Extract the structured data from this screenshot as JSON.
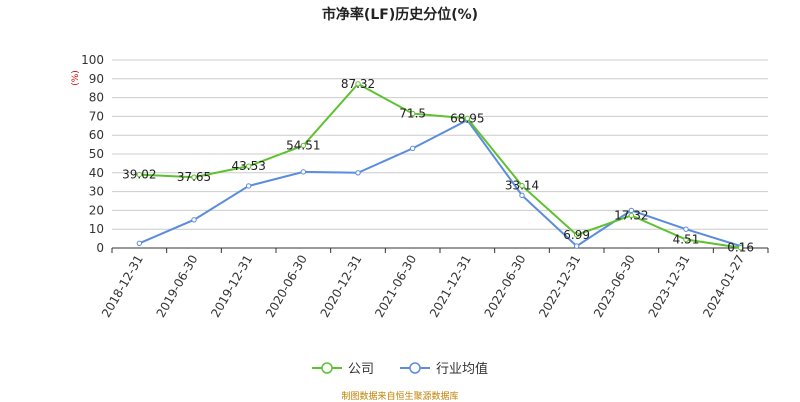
{
  "title": "市净率(LF)历史分位(%)",
  "source": "制图数据来自恒生聚源数据库",
  "colors": {
    "company": "#5ec12f",
    "industry": "#5b8ce0",
    "grid": "#cccccc",
    "unit": "#cc0000"
  },
  "chart_data": {
    "type": "line",
    "title": "市净率(LF)历史分位(%)",
    "ylabel": "(%)",
    "ylim": [
      0,
      100
    ],
    "yticks": [
      0,
      10,
      20,
      30,
      40,
      50,
      60,
      70,
      80,
      90,
      100
    ],
    "categories": [
      "2018-12-31",
      "2019-06-30",
      "2019-12-31",
      "2020-06-30",
      "2020-12-31",
      "2021-06-30",
      "2021-12-31",
      "2022-06-30",
      "2022-12-31",
      "2023-06-30",
      "2023-12-31",
      "2024-01-27"
    ],
    "series": [
      {
        "name": "公司",
        "values": [
          39.02,
          37.65,
          43.53,
          54.51,
          87.32,
          71.5,
          68.95,
          33.14,
          6.99,
          17.32,
          4.51,
          0.16
        ],
        "labeled": true
      },
      {
        "name": "行业均值",
        "values": [
          2.5,
          15,
          33,
          40.5,
          40,
          53,
          68,
          28,
          1,
          20,
          10,
          1
        ],
        "labeled": false
      }
    ],
    "grid": true,
    "legend": "bottom"
  }
}
